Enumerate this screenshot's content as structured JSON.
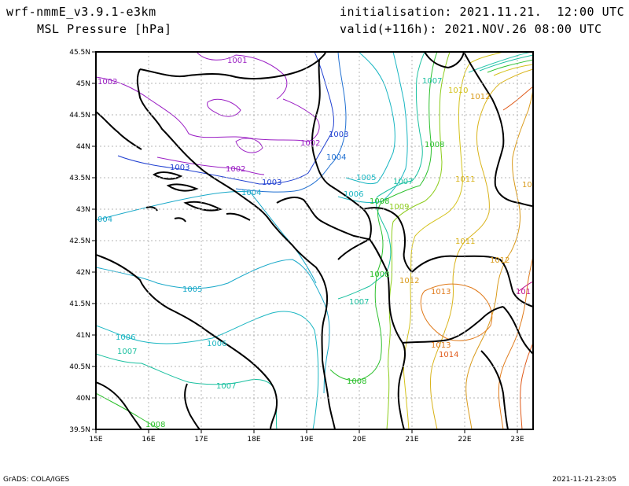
{
  "header": {
    "model": "wrf-nmmE_v3.9.1-e3km",
    "field": "MSL Pressure [hPa]",
    "init": "initialisation: 2021.11.21.  12:00 UTC",
    "valid": "valid(+116h): 2021.NOV.26 08:00 UTC"
  },
  "footer": {
    "credit": "GrADS: COLA/IGES",
    "timestamp": "2021-11-21-23:05"
  },
  "axes": {
    "lon_ticks": [
      "15E",
      "16E",
      "17E",
      "18E",
      "19E",
      "20E",
      "21E",
      "22E",
      "23E"
    ],
    "lat_ticks": [
      "45.5N",
      "45N",
      "44.5N",
      "44N",
      "43.5N",
      "43N",
      "42.5N",
      "42N",
      "41.5N",
      "41N",
      "40.5N",
      "40N",
      "39.5N"
    ]
  },
  "contour_labels": [
    {
      "text": "1001",
      "color": "#9b1fc4"
    },
    {
      "text": "1002",
      "color": "#9b1fc4"
    },
    {
      "text": "1002",
      "color": "#9b1fc4"
    },
    {
      "text": "1002",
      "color": "#9b1fc4"
    },
    {
      "text": "1003",
      "color": "#1f3fd1"
    },
    {
      "text": "1003",
      "color": "#1f3fd1"
    },
    {
      "text": "1003",
      "color": "#1f3fd1"
    },
    {
      "text": "1004",
      "color": "#1f6fd1"
    },
    {
      "text": "1004",
      "color": "#1aa9c9"
    },
    {
      "text": "004",
      "color": "#1aa9c9"
    },
    {
      "text": "1005",
      "color": "#1aa9c9"
    },
    {
      "text": "1005",
      "color": "#1ab6c2"
    },
    {
      "text": "1006",
      "color": "#1ab6c2"
    },
    {
      "text": "1006",
      "color": "#1ab6c2"
    },
    {
      "text": "1006",
      "color": "#1ab6c2"
    },
    {
      "text": "1007",
      "color": "#1ac0a0"
    },
    {
      "text": "1007",
      "color": "#1ac0a0"
    },
    {
      "text": "1007",
      "color": "#1ac0a0"
    },
    {
      "text": "1007",
      "color": "#1ac0a0"
    },
    {
      "text": "1007",
      "color": "#1ac0a0"
    },
    {
      "text": "1008",
      "color": "#2cc02c"
    },
    {
      "text": "1008",
      "color": "#2cc02c"
    },
    {
      "text": "1008",
      "color": "#2cc02c"
    },
    {
      "text": "1008",
      "color": "#2cc02c"
    },
    {
      "text": "1008",
      "color": "#2cc02c"
    },
    {
      "text": "1009",
      "color": "#8ccc1a"
    },
    {
      "text": "1010",
      "color": "#d4c21a"
    },
    {
      "text": "1011",
      "color": "#d9b31a"
    },
    {
      "text": "1011",
      "color": "#d9b31a"
    },
    {
      "text": "1012",
      "color": "#d99a1a"
    },
    {
      "text": "1012",
      "color": "#d99a1a"
    },
    {
      "text": "1012",
      "color": "#d99a1a"
    },
    {
      "text": "1013",
      "color": "#e07a1a"
    },
    {
      "text": "1013",
      "color": "#e07a1a"
    },
    {
      "text": "1014",
      "color": "#e05a1a"
    },
    {
      "text": "101",
      "color": "#c0148c"
    },
    {
      "text": "10",
      "color": "#d99a1a"
    }
  ]
}
